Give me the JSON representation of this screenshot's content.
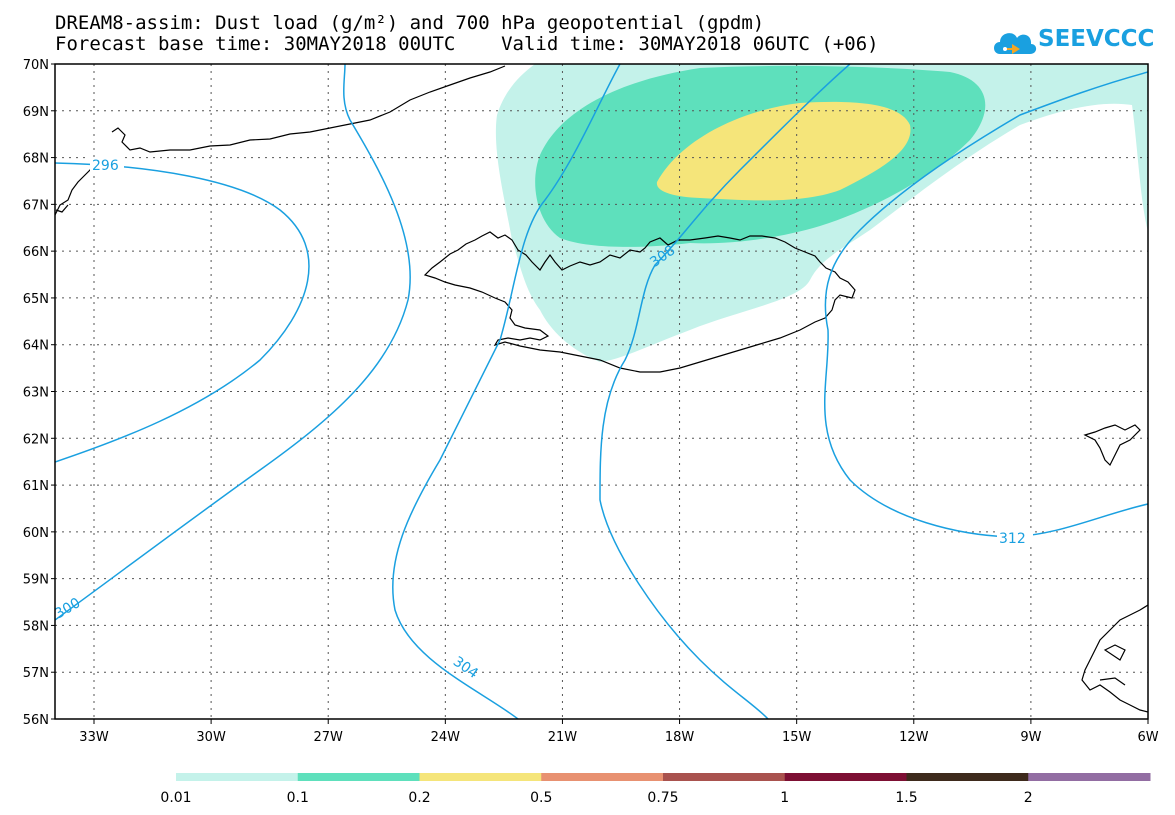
{
  "header": {
    "title_line1": "DREAM8-assim: Dust load (g/m²) and 700 hPa geopotential (gpdm)",
    "title_line2": "Forecast base time: 30MAY2018 00UTC    Valid time: 30MAY2018 06UTC (+06)"
  },
  "logo": {
    "text": "SEEVCCC",
    "icon": "cloud-icon",
    "color": "#1aa0e0"
  },
  "map": {
    "lat_labels": [
      "70N",
      "69N",
      "68N",
      "67N",
      "66N",
      "65N",
      "64N",
      "63N",
      "62N",
      "61N",
      "60N",
      "59N",
      "58N",
      "57N",
      "56N"
    ],
    "lon_labels": [
      "33W",
      "30W",
      "27W",
      "24W",
      "21W",
      "18W",
      "15W",
      "12W",
      "9W",
      "6W"
    ],
    "contour_labels": [
      "296",
      "300",
      "304",
      "308",
      "312"
    ],
    "contour_color": "#1aa0e0",
    "coastline_color": "#000000",
    "grid": "dotted"
  },
  "colorbar": {
    "thresholds": [
      "0.01",
      "0.1",
      "0.2",
      "0.5",
      "0.75",
      "1",
      "1.5",
      "2"
    ],
    "colors": [
      "#c4f2ea",
      "#5ee0bc",
      "#f5e57a",
      "#e89171",
      "#a9524e",
      "#7d0f33",
      "#3e2a1c",
      "#926da2"
    ]
  }
}
